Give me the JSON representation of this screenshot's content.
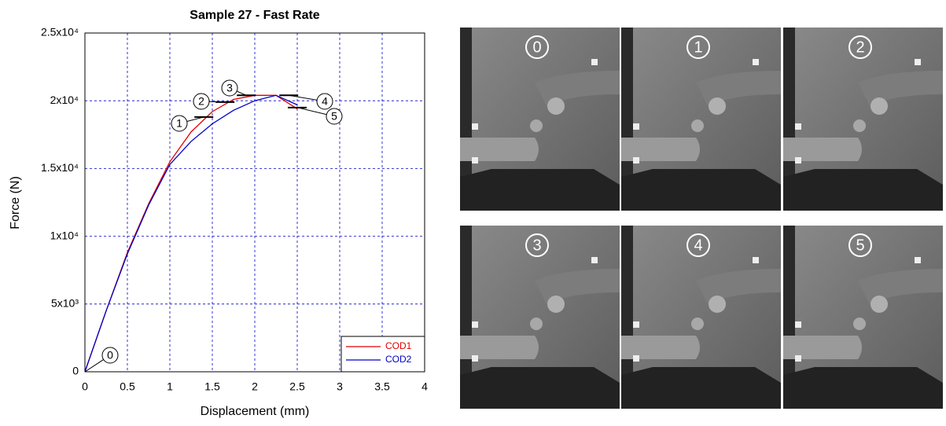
{
  "chart_data": {
    "type": "line",
    "title": "Sample 27 - Fast Rate",
    "x_label": "Displacement (mm)",
    "y_label": "Force (N)",
    "x": [
      0,
      0.25,
      0.5,
      0.75,
      1,
      1.25,
      1.5,
      1.75,
      2,
      2.25,
      2.5
    ],
    "series": [
      {
        "name": "COD1",
        "color": "#e00000",
        "values": [
          0,
          4500,
          8800,
          12400,
          15500,
          17700,
          19200,
          20100,
          20400,
          20400,
          19400
        ]
      },
      {
        "name": "COD2",
        "color": "#0000c8",
        "values": [
          0,
          4500,
          8700,
          12300,
          15300,
          17000,
          18300,
          19300,
          20000,
          20400,
          19700
        ]
      }
    ],
    "xlim": [
      0,
      4
    ],
    "xticks": [
      0,
      0.5,
      1,
      1.5,
      2,
      2.5,
      3,
      3.5,
      4
    ],
    "ylim": [
      0,
      25000
    ],
    "yticks": [
      0,
      {
        "value": 5000,
        "label": "5x10³"
      },
      {
        "value": 10000,
        "label": "1x10⁴"
      },
      {
        "value": 15000,
        "label": "1.5x10⁴"
      },
      {
        "value": 20000,
        "label": "2x10⁴"
      },
      {
        "value": 25000,
        "label": "2.5x10⁴"
      }
    ],
    "grid": true,
    "legend": "lower right",
    "annotations": [
      "0",
      "1",
      "2",
      "3",
      "4",
      "5"
    ]
  },
  "photos": {
    "labels": [
      "0",
      "1",
      "2",
      "3",
      "4",
      "5"
    ]
  }
}
